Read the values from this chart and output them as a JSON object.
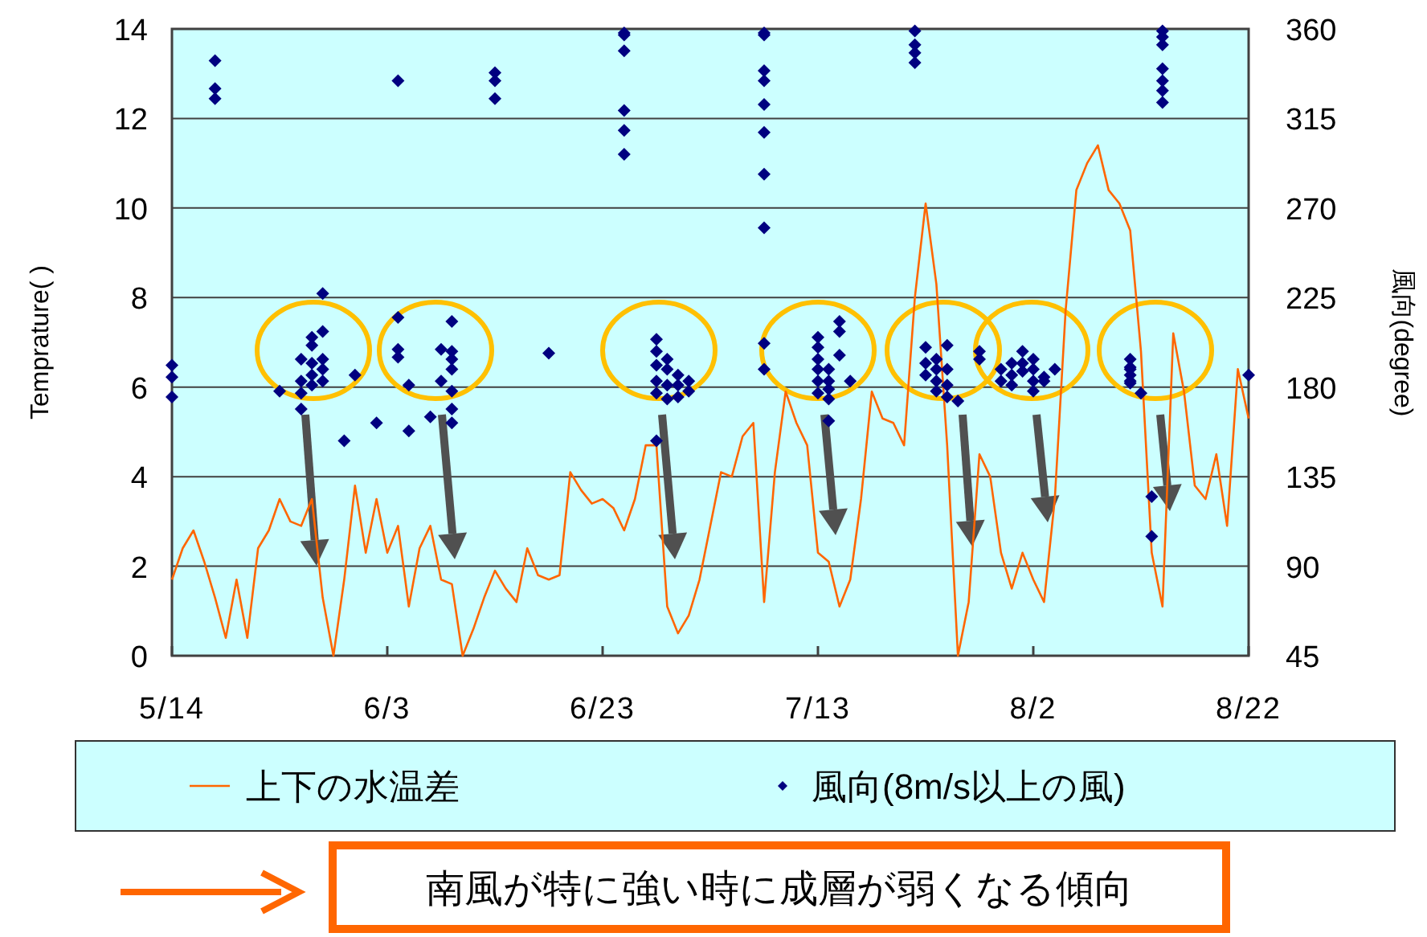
{
  "chart_data": {
    "type": "line",
    "ylabel": "Temprature(   )",
    "y2label": "風向(degree)",
    "xlim": [
      "--05-14",
      "--08-22"
    ],
    "xticks": [
      {
        "value": "--05-14",
        "label": "5/14"
      },
      {
        "value": "--06-03",
        "label": "6/3"
      },
      {
        "value": "--06-23",
        "label": "6/23"
      },
      {
        "value": "--07-13",
        "label": "7/13"
      },
      {
        "value": "--08-02",
        "label": "8/2"
      },
      {
        "value": "--08-22",
        "label": "8/22"
      }
    ],
    "ylim": [
      0,
      14
    ],
    "yticks": [
      0,
      2,
      4,
      6,
      8,
      10,
      12,
      14
    ],
    "y2lim": [
      45,
      360
    ],
    "y2ticks": [
      45,
      90,
      135,
      180,
      225,
      270,
      315,
      360
    ],
    "grid": "y",
    "legend": "bottom",
    "annotations": [
      "南風が特に強い時に成層が弱くなる傾向"
    ],
    "series": [
      {
        "name": "上下の水温差",
        "color": "#ff6600",
        "marker": "none",
        "line_style": "solid",
        "x": [
          "--05-14",
          "--05-15",
          "--05-16",
          "--05-17",
          "--05-18",
          "--05-19",
          "--05-20",
          "--05-21",
          "--05-22",
          "--05-23",
          "--05-24",
          "--05-25",
          "--05-26",
          "--05-27",
          "--05-28",
          "--05-29",
          "--05-30",
          "--05-31",
          "--06-01",
          "--06-02",
          "--06-03",
          "--06-04",
          "--06-05",
          "--06-06",
          "--06-07",
          "--06-08",
          "--06-09",
          "--06-10",
          "--06-11",
          "--06-12",
          "--06-13",
          "--06-14",
          "--06-15",
          "--06-16",
          "--06-17",
          "--06-18",
          "--06-19",
          "--06-20",
          "--06-21",
          "--06-22",
          "--06-23",
          "--06-24",
          "--06-25",
          "--06-26",
          "--06-27",
          "--06-28",
          "--06-29",
          "--06-30",
          "--07-01",
          "--07-02",
          "--07-03",
          "--07-04",
          "--07-05",
          "--07-06",
          "--07-07",
          "--07-08",
          "--07-09",
          "--07-10",
          "--07-11",
          "--07-12",
          "--07-13",
          "--07-14",
          "--07-15",
          "--07-16",
          "--07-17",
          "--07-18",
          "--07-19",
          "--07-20",
          "--07-21",
          "--07-22",
          "--07-23",
          "--07-24",
          "--07-25",
          "--07-26",
          "--07-27",
          "--07-28",
          "--07-29",
          "--07-30",
          "--07-31",
          "--08-01",
          "--08-02",
          "--08-03",
          "--08-04",
          "--08-05",
          "--08-06",
          "--08-07",
          "--08-08",
          "--08-09",
          "--08-10",
          "--08-11",
          "--08-12",
          "--08-13",
          "--08-14",
          "--08-15",
          "--08-16",
          "--08-17",
          "--08-18",
          "--08-19",
          "--08-20",
          "--08-21",
          "--08-22"
        ],
        "values": [
          1.7,
          2.4,
          2.8,
          2.1,
          1.3,
          0.4,
          1.7,
          0.4,
          2.4,
          2.8,
          3.5,
          3.0,
          2.9,
          3.5,
          1.3,
          0.0,
          1.7,
          3.8,
          2.3,
          3.5,
          2.3,
          2.9,
          1.1,
          2.4,
          2.9,
          1.7,
          1.6,
          0.0,
          0.6,
          1.3,
          1.9,
          1.5,
          1.2,
          2.4,
          1.8,
          1.7,
          1.8,
          4.1,
          3.7,
          3.4,
          3.5,
          3.3,
          2.8,
          3.5,
          4.7,
          4.7,
          1.1,
          0.5,
          0.9,
          1.7,
          2.9,
          4.1,
          4.0,
          4.9,
          5.2,
          1.2,
          4.1,
          5.9,
          5.2,
          4.7,
          2.3,
          2.1,
          1.1,
          1.7,
          3.5,
          5.9,
          5.3,
          5.2,
          4.7,
          8.0,
          10.1,
          8.3,
          4.7,
          0.0,
          1.2,
          4.5,
          4.0,
          2.3,
          1.5,
          2.3,
          1.7,
          1.2,
          3.5,
          7.7,
          10.4,
          11.0,
          11.4,
          10.4,
          10.1,
          9.5,
          6.8,
          2.3,
          1.1,
          7.2,
          5.9,
          3.8,
          3.5,
          4.5,
          2.9,
          6.4,
          5.3
        ]
      },
      {
        "name": "風向(8m/s以上の風)",
        "type": "scatter",
        "axis": "y2",
        "color": "#000080",
        "marker": "diamond",
        "x": [
          "--05-14",
          "--05-14",
          "--05-14",
          "--05-18",
          "--05-18",
          "--05-18",
          "--05-24",
          "--05-26",
          "--05-26",
          "--05-26",
          "--05-26",
          "--05-27",
          "--05-27",
          "--05-27",
          "--05-27",
          "--05-27",
          "--05-28",
          "--05-28",
          "--05-28",
          "--05-28",
          "--05-28",
          "--05-30",
          "--05-31",
          "--06-02",
          "--06-04",
          "--06-04",
          "--06-04",
          "--06-04",
          "--06-05",
          "--06-05",
          "--06-07",
          "--06-08",
          "--06-08",
          "--06-09",
          "--06-09",
          "--06-09",
          "--06-09",
          "--06-09",
          "--06-09",
          "--06-09",
          "--06-13",
          "--06-13",
          "--06-13",
          "--06-18",
          "--06-25",
          "--06-25",
          "--06-25",
          "--06-25",
          "--06-25",
          "--06-25",
          "--06-28",
          "--06-28",
          "--06-28",
          "--06-28",
          "--06-28",
          "--06-28",
          "--06-29",
          "--06-29",
          "--06-29",
          "--06-29",
          "--06-30",
          "--06-30",
          "--06-30",
          "--07-01",
          "--07-01",
          "--07-08",
          "--07-08",
          "--07-08",
          "--07-08",
          "--07-08",
          "--07-08",
          "--07-08",
          "--07-08",
          "--07-08",
          "--07-08",
          "--07-13",
          "--07-13",
          "--07-13",
          "--07-13",
          "--07-13",
          "--07-13",
          "--07-14",
          "--07-14",
          "--07-14",
          "--07-14",
          "--07-14",
          "--07-15",
          "--07-15",
          "--07-15",
          "--07-16",
          "--07-22",
          "--07-22",
          "--07-22",
          "--07-22",
          "--07-23",
          "--07-23",
          "--07-23",
          "--07-24",
          "--07-24",
          "--07-24",
          "--07-24",
          "--07-25",
          "--07-25",
          "--07-25",
          "--07-25",
          "--07-26",
          "--07-28",
          "--07-28",
          "--07-30",
          "--07-30",
          "--07-31",
          "--07-31",
          "--07-31",
          "--08-01",
          "--08-01",
          "--08-01",
          "--08-02",
          "--08-02",
          "--08-02",
          "--08-02",
          "--08-03",
          "--08-03",
          "--08-04",
          "--08-11",
          "--08-11",
          "--08-11",
          "--08-11",
          "--08-11",
          "--08-11",
          "--08-12",
          "--08-13",
          "--08-13",
          "--08-14",
          "--08-14",
          "--08-14",
          "--08-14",
          "--08-14",
          "--08-14",
          "--08-14",
          "--08-22"
        ],
        "values": [
          191,
          185,
          175,
          344,
          330,
          325,
          178,
          194,
          183,
          177,
          169,
          205,
          201,
          192,
          186,
          181,
          227,
          208,
          194,
          189,
          183,
          153,
          186,
          162,
          334,
          215,
          199,
          195,
          181,
          158,
          165,
          199,
          183,
          213,
          198,
          194,
          189,
          178,
          169,
          162,
          338,
          334,
          325,
          197,
          358,
          357,
          349,
          319,
          309,
          297,
          204,
          198,
          191,
          183,
          177,
          153,
          194,
          189,
          181,
          174,
          186,
          181,
          175,
          183,
          178,
          358,
          357,
          339,
          334,
          322,
          308,
          287,
          260,
          202,
          189,
          205,
          200,
          194,
          189,
          183,
          177,
          189,
          183,
          179,
          174,
          163,
          213,
          208,
          196,
          183,
          359,
          352,
          348,
          343,
          200,
          192,
          186,
          194,
          189,
          183,
          178,
          201,
          189,
          181,
          175,
          173,
          198,
          194,
          189,
          183,
          192,
          186,
          181,
          198,
          192,
          188,
          194,
          189,
          183,
          178,
          185,
          183,
          189,
          194,
          190,
          186,
          182,
          189,
          183,
          177,
          125,
          105,
          359,
          356,
          352,
          340,
          334,
          329,
          323,
          186
        ]
      }
    ]
  }
}
